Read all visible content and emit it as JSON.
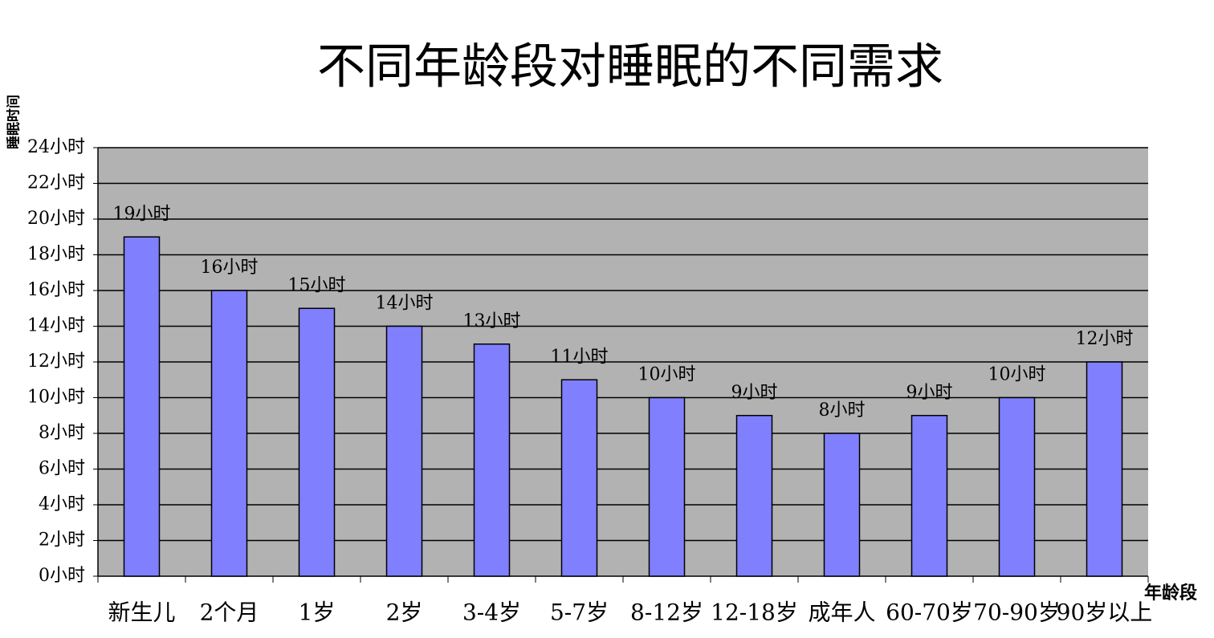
{
  "chart_data": {
    "type": "bar",
    "title": "不同年龄段对睡眠的不同需求",
    "y_label": "睡眠时间",
    "x_label": "年龄段",
    "categories": [
      "新生儿",
      "2个月",
      "1岁",
      "2岁",
      "3-4岁",
      "5-7岁",
      "8-12岁",
      "12-18岁",
      "成年人",
      "60-70岁",
      "70-90岁",
      "90岁以上"
    ],
    "values": [
      19,
      16,
      15,
      14,
      13,
      11,
      10,
      9,
      8,
      9,
      10,
      12
    ],
    "value_labels": [
      "19小时",
      "16小时",
      "15小时",
      "14小时",
      "13小时",
      "11小时",
      "10小时",
      "9小时",
      "8小时",
      "9小时",
      "10小时",
      "12小时"
    ],
    "color": "#8080ff",
    "ylim": [
      0,
      24
    ],
    "yticks": [
      {
        "value": 0,
        "label": "0小时"
      },
      {
        "value": 2,
        "label": "2小时"
      },
      {
        "value": 4,
        "label": "4小时"
      },
      {
        "value": 6,
        "label": "6小时"
      },
      {
        "value": 8,
        "label": "8小时"
      },
      {
        "value": 10,
        "label": "10小时"
      },
      {
        "value": 12,
        "label": "12小时"
      },
      {
        "value": 14,
        "label": "14小时"
      },
      {
        "value": 16,
        "label": "16小时"
      },
      {
        "value": 18,
        "label": "18小时"
      },
      {
        "value": 20,
        "label": "20小时"
      },
      {
        "value": 22,
        "label": "22小时"
      },
      {
        "value": 24,
        "label": "24小时"
      }
    ],
    "grid": true
  }
}
